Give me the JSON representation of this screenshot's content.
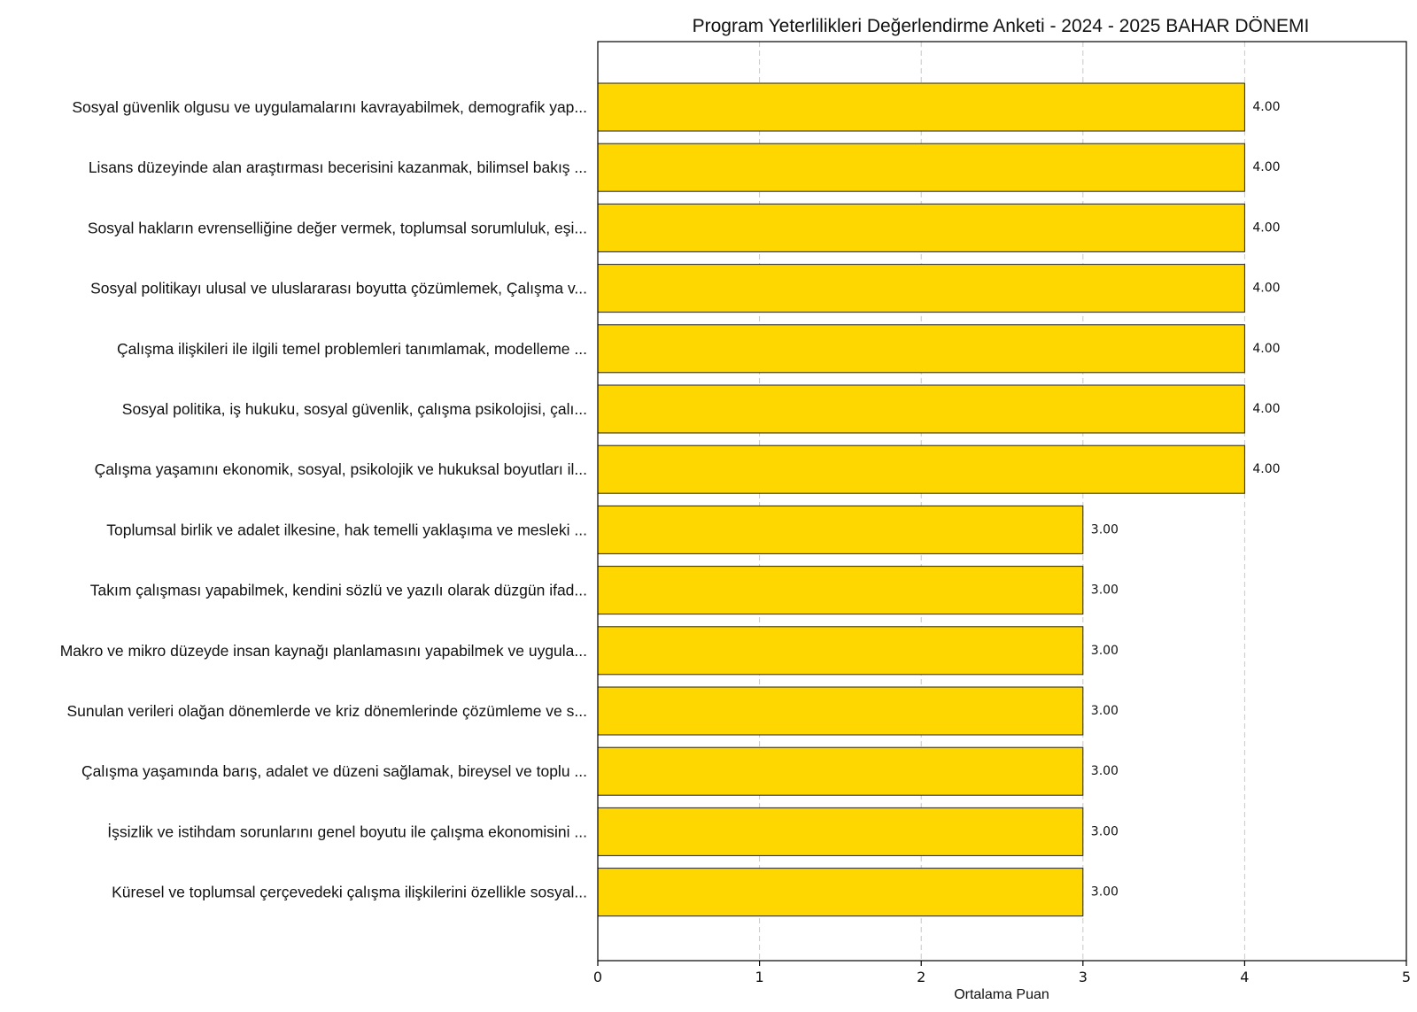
{
  "chart_data": {
    "type": "bar",
    "orientation": "horizontal",
    "title": "Program Yeterlilikleri Değerlendirme Anketi - 2024 - 2025 BAHAR DÖNEMI",
    "xlabel": "Ortalama Puan",
    "ylabel": "",
    "xlim": [
      0,
      5
    ],
    "xticks": [
      "0",
      "1",
      "2",
      "3",
      "4",
      "5"
    ],
    "grid": "x-dashed",
    "bar_color": "#FFD700",
    "categories": [
      "Sosyal güvenlik olgusu ve uygulamalarını kavrayabilmek, demografik yap...",
      "Lisans düzeyinde alan araştırması becerisini kazanmak, bilimsel bakış ...",
      "Sosyal hakların evrenselliğine değer vermek, toplumsal sorumluluk, eşi...",
      "Sosyal politikayı ulusal ve uluslararası boyutta çözümlemek, Çalışma v...",
      "Çalışma ilişkileri ile ilgili temel problemleri tanımlamak, modelleme ...",
      "Sosyal politika, iş hukuku, sosyal güvenlik, çalışma psikolojisi, çalı...",
      "Çalışma yaşamını ekonomik, sosyal, psikolojik ve hukuksal boyutları il...",
      "Toplumsal birlik ve adalet ilkesine, hak temelli yaklaşıma ve mesleki ...",
      "Takım çalışması yapabilmek, kendini sözlü ve yazılı olarak düzgün ifad...",
      "Makro ve mikro düzeyde insan kaynağı planlamasını yapabilmek ve uygula...",
      "Sunulan verileri olağan dönemlerde ve kriz dönemlerinde çözümleme ve s...",
      "Çalışma yaşamında barış, adalet ve düzeni sağlamak, bireysel ve toplu ...",
      "İşsizlik ve istihdam sorunlarını genel boyutu ile çalışma ekonomisini ...",
      "Küresel ve toplumsal çerçevedeki çalışma ilişkilerini özellikle sosyal..."
    ],
    "values": [
      4.0,
      4.0,
      4.0,
      4.0,
      4.0,
      4.0,
      4.0,
      3.0,
      3.0,
      3.0,
      3.0,
      3.0,
      3.0,
      3.0
    ],
    "value_labels": [
      "4.00",
      "4.00",
      "4.00",
      "4.00",
      "4.00",
      "4.00",
      "4.00",
      "3.00",
      "3.00",
      "3.00",
      "3.00",
      "3.00",
      "3.00",
      "3.00"
    ]
  }
}
